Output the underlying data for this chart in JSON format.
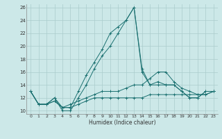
{
  "title": "",
  "xlabel": "Humidex (Indice chaleur)",
  "bg_color": "#cce8e8",
  "grid_color": "#aacccc",
  "line_color": "#1a7070",
  "xlim": [
    -0.5,
    23.5
  ],
  "ylim": [
    9.5,
    26.5
  ],
  "yticks": [
    10,
    12,
    14,
    16,
    18,
    20,
    22,
    24,
    26
  ],
  "xticks": [
    0,
    1,
    2,
    3,
    4,
    5,
    6,
    7,
    8,
    9,
    10,
    11,
    12,
    13,
    14,
    15,
    16,
    17,
    18,
    19,
    20,
    21,
    22,
    23
  ],
  "s1_x": [
    0,
    1,
    2,
    3,
    4,
    5,
    6,
    7,
    8,
    9,
    10,
    11,
    12,
    13,
    14,
    15,
    16,
    17,
    18,
    19,
    20,
    21,
    22,
    23
  ],
  "s1_y": [
    13,
    11,
    11,
    12,
    10,
    10,
    12,
    14,
    16.5,
    18.5,
    20,
    22,
    24,
    26,
    16,
    14,
    14,
    14,
    14,
    13,
    12,
    12,
    13,
    13
  ],
  "s2_x": [
    0,
    1,
    2,
    3,
    4,
    5,
    6,
    7,
    8,
    9,
    10,
    11,
    12,
    13,
    14,
    15,
    16,
    17,
    18,
    19,
    20,
    21,
    22,
    23
  ],
  "s2_y": [
    13,
    11,
    11,
    12,
    10.5,
    10.5,
    13,
    15.5,
    17.5,
    19.5,
    22,
    23,
    24,
    26,
    16.5,
    14,
    14.5,
    14,
    14,
    13,
    12,
    12,
    13,
    13
  ],
  "s3_x": [
    0,
    1,
    2,
    3,
    4,
    5,
    6,
    7,
    8,
    9,
    10,
    11,
    12,
    13,
    14,
    15,
    16,
    17,
    18,
    19,
    20,
    21,
    22,
    23
  ],
  "s3_y": [
    13,
    11,
    11,
    11.5,
    10.5,
    11,
    11.5,
    12,
    12.5,
    13,
    13,
    13,
    13.5,
    14,
    14,
    15,
    16,
    16,
    14.5,
    13.5,
    13,
    12.5,
    12.5,
    13
  ],
  "s4_x": [
    0,
    1,
    2,
    3,
    4,
    5,
    6,
    7,
    8,
    9,
    10,
    11,
    12,
    13,
    14,
    15,
    16,
    17,
    18,
    19,
    20,
    21,
    22,
    23
  ],
  "s4_y": [
    13,
    11,
    11,
    11.5,
    10.5,
    10.5,
    11,
    11.5,
    12,
    12,
    12,
    12,
    12,
    12,
    12,
    12.5,
    12.5,
    12.5,
    12.5,
    12.5,
    12.5,
    12.5,
    12.5,
    13
  ]
}
